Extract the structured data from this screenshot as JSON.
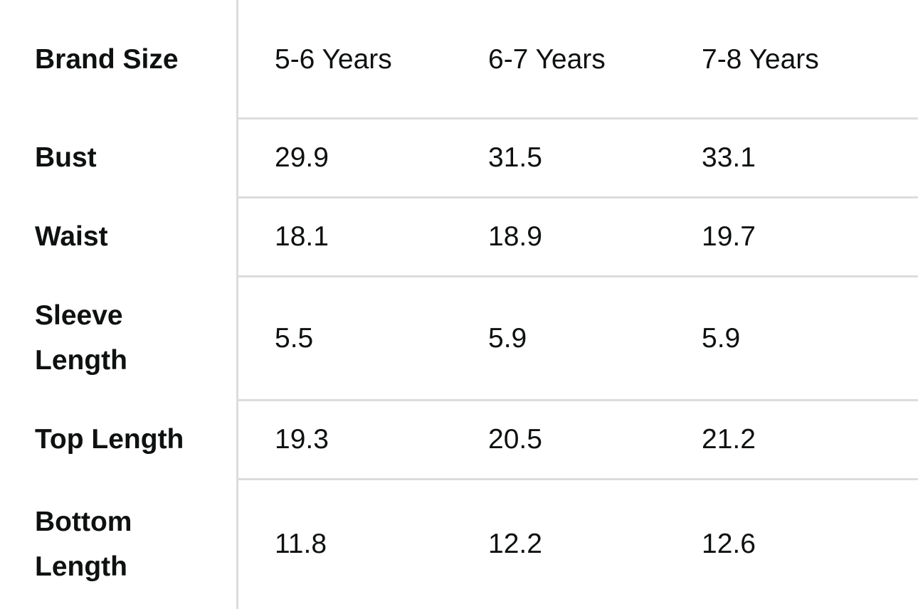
{
  "table": {
    "header": {
      "label": "Brand Size",
      "columns": [
        "5-6 Years",
        "6-7 Years",
        "7-8 Years"
      ]
    },
    "rows": [
      {
        "label": "Bust",
        "values": [
          "29.9",
          "31.5",
          "33.1"
        ]
      },
      {
        "label": "Waist",
        "values": [
          "18.1",
          "18.9",
          "19.7"
        ]
      },
      {
        "label": "Sleeve Length",
        "values": [
          "5.5",
          "5.9",
          "5.9"
        ]
      },
      {
        "label": "Top Length",
        "values": [
          "19.3",
          "20.5",
          "21.2"
        ]
      },
      {
        "label": "Bottom Length",
        "values": [
          "11.8",
          "12.2",
          "12.6"
        ]
      }
    ]
  }
}
